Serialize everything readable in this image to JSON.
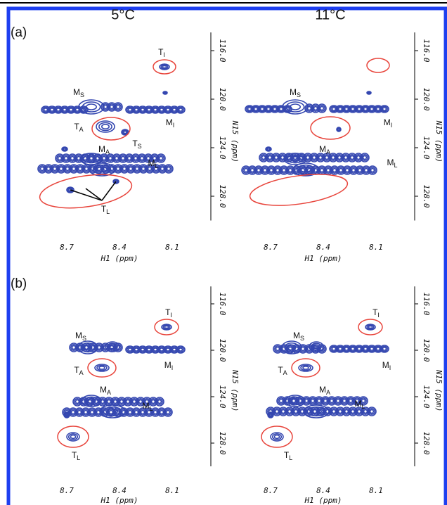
{
  "columns": [
    "5°C",
    "11°C"
  ],
  "rows": [
    {
      "label": "(a)",
      "xticks": [
        {
          "value": 8.7,
          "label": "8.7"
        },
        {
          "value": 8.4,
          "label": "8.4"
        },
        {
          "value": 8.1,
          "label": "8.1"
        }
      ],
      "yticks": [
        {
          "value": 116,
          "label": "116.0"
        },
        {
          "value": 120,
          "label": "120.0"
        },
        {
          "value": 124,
          "label": "124.0"
        },
        {
          "value": 128,
          "label": "128.0"
        }
      ],
      "panels": [
        {
          "x_label": "H1 (ppm)",
          "y_label": "N15 (ppm)",
          "peak_labels": [
            {
              "main": "T",
              "sub": "I"
            },
            {
              "main": "M",
              "sub": "S"
            },
            {
              "main": "M",
              "sub": "I"
            },
            {
              "main": "T",
              "sub": "A"
            },
            {
              "main": "T",
              "sub": "S"
            },
            {
              "main": "M",
              "sub": "A"
            },
            {
              "main": "M",
              "sub": "L"
            },
            {
              "main": "T",
              "sub": "L"
            }
          ]
        },
        {
          "x_label": "H1 (ppm)",
          "y_label": "N15 (ppm)",
          "peak_labels": [
            {
              "main": "M",
              "sub": "S"
            },
            {
              "main": "M",
              "sub": "I"
            },
            {
              "main": "M",
              "sub": "A"
            },
            {
              "main": "M",
              "sub": "L"
            }
          ]
        }
      ]
    },
    {
      "label": "(b)",
      "xticks": [
        {
          "value": 8.7,
          "label": "8.7"
        },
        {
          "value": 8.4,
          "label": "8.4"
        },
        {
          "value": 8.1,
          "label": "8.1"
        }
      ],
      "yticks": [
        {
          "value": 116,
          "label": "116.0"
        },
        {
          "value": 120,
          "label": "120.0"
        },
        {
          "value": 124,
          "label": "124.0"
        },
        {
          "value": 128,
          "label": "128.0"
        }
      ],
      "panels": [
        {
          "x_label": "H1 (ppm)",
          "y_label": "N15 (ppm)",
          "peak_labels": [
            {
              "main": "T",
              "sub": "I"
            },
            {
              "main": "M",
              "sub": "S"
            },
            {
              "main": "M",
              "sub": "I"
            },
            {
              "main": "T",
              "sub": "A"
            },
            {
              "main": "M",
              "sub": "A"
            },
            {
              "main": "M",
              "sub": "L"
            },
            {
              "main": "T",
              "sub": "L"
            }
          ]
        },
        {
          "x_label": "H1 (ppm)",
          "y_label": "N15 (ppm)",
          "peak_labels": [
            {
              "main": "T",
              "sub": "I"
            },
            {
              "main": "M",
              "sub": "S"
            },
            {
              "main": "M",
              "sub": "I"
            },
            {
              "main": "T",
              "sub": "A"
            },
            {
              "main": "M",
              "sub": "A"
            },
            {
              "main": "M",
              "sub": "L"
            },
            {
              "main": "T",
              "sub": "L"
            }
          ]
        }
      ]
    }
  ]
}
